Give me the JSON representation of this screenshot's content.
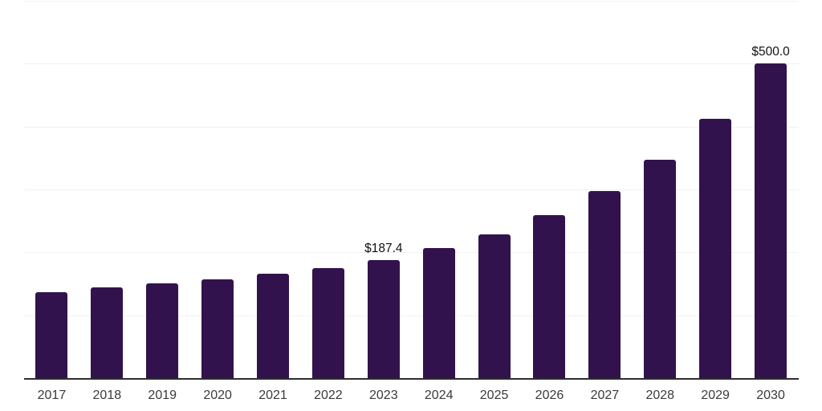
{
  "chart_data": {
    "type": "bar",
    "categories": [
      "2017",
      "2018",
      "2019",
      "2020",
      "2021",
      "2022",
      "2023",
      "2024",
      "2025",
      "2026",
      "2027",
      "2028",
      "2029",
      "2030"
    ],
    "values": [
      137,
      144.5,
      151,
      157.5,
      166,
      175,
      187.4,
      206.5,
      228.5,
      259.5,
      297,
      347,
      412.5,
      500
    ],
    "value_labels": [
      "",
      "",
      "",
      "",
      "",
      "",
      "$187.4",
      "",
      "",
      "",
      "",
      "",
      "",
      "$500.0"
    ],
    "ylim": [
      0,
      600
    ],
    "gridline_values": [
      100,
      200,
      300,
      400,
      500,
      600
    ],
    "grid": "horizontal-only",
    "legend": "none",
    "y_axis_tick_labels": "none",
    "colors": {
      "bar": "#32124d",
      "axis_line": "#2e2e2e",
      "gridline": "#f1f1f1",
      "x_label_text": "#3a3a3a",
      "value_label_text": "#111111",
      "background": "#ffffff"
    }
  }
}
